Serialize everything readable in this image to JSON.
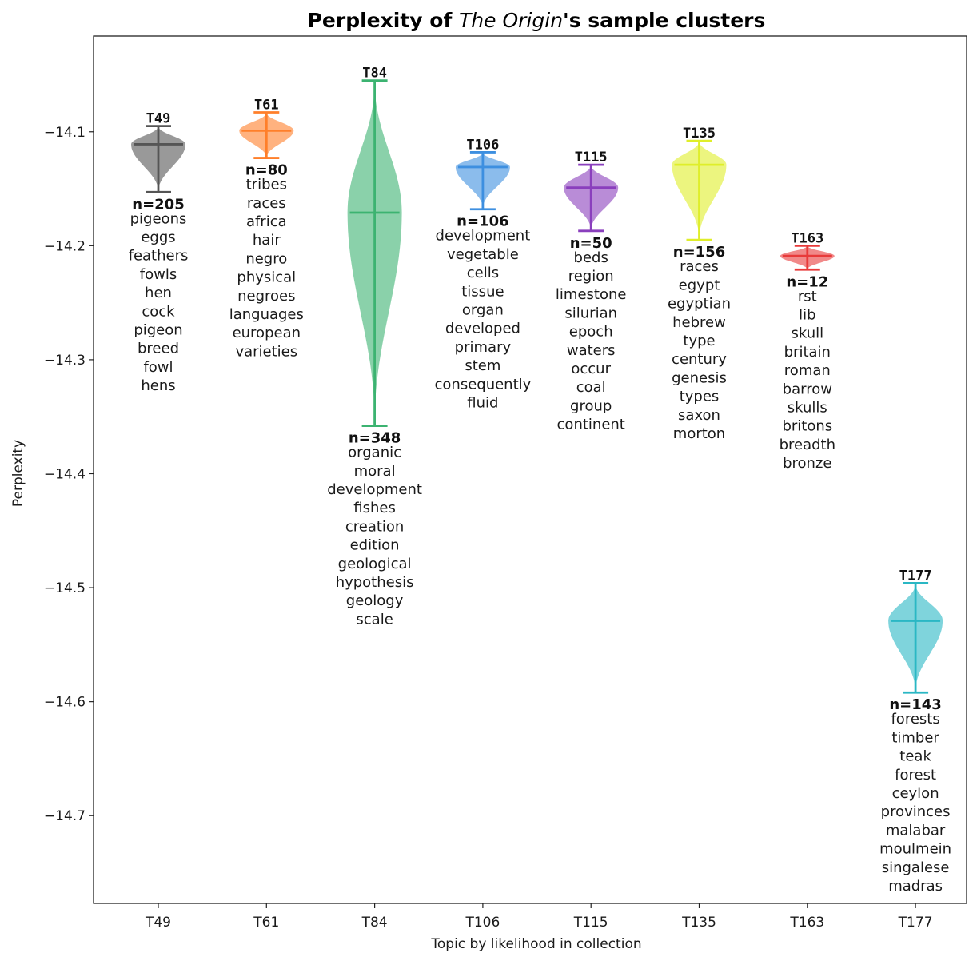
{
  "chart_data": {
    "type": "violin",
    "title_parts": [
      "Perplexity of ",
      "The Origin",
      "'s sample clusters"
    ],
    "xlabel": "Topic by likelihood in collection",
    "ylabel": "Perplexity",
    "ylim": [
      -14.777,
      -14.016
    ],
    "yticks": [
      -14.1,
      -14.2,
      -14.3,
      -14.4,
      -14.5,
      -14.6,
      -14.7
    ],
    "categories": [
      "T49",
      "T61",
      "T84",
      "T106",
      "T115",
      "T135",
      "T163",
      "T177"
    ],
    "series": [
      {
        "topic": "T49",
        "color": "#555555",
        "median": -14.111,
        "min": -14.153,
        "max": -14.095,
        "n": "n=205",
        "words": [
          "pigeons",
          "eggs",
          "feathers",
          "fowls",
          "hen",
          "cock",
          "pigeon",
          "breed",
          "fowl",
          "hens"
        ]
      },
      {
        "topic": "T61",
        "color": "#ff7f2a",
        "median": -14.099,
        "min": -14.123,
        "max": -14.083,
        "n": "n=80",
        "words": [
          "tribes",
          "races",
          "africa",
          "hair",
          "negro",
          "physical",
          "negroes",
          "languages",
          "european",
          "varieties"
        ]
      },
      {
        "topic": "T84",
        "color": "#3cb371",
        "median": -14.171,
        "min": -14.358,
        "max": -14.055,
        "n": "n=348",
        "words": [
          "organic",
          "moral",
          "development",
          "fishes",
          "creation",
          "edition",
          "geological",
          "hypothesis",
          "geology",
          "scale"
        ]
      },
      {
        "topic": "T106",
        "color": "#3d8fe0",
        "median": -14.131,
        "min": -14.168,
        "max": -14.118,
        "n": "n=106",
        "words": [
          "development",
          "vegetable",
          "cells",
          "tissue",
          "organ",
          "developed",
          "primary",
          "stem",
          "consequently",
          "fluid"
        ]
      },
      {
        "topic": "T115",
        "color": "#8a3fbd",
        "median": -14.149,
        "min": -14.187,
        "max": -14.129,
        "n": "n=50",
        "words": [
          "beds",
          "region",
          "limestone",
          "silurian",
          "epoch",
          "waters",
          "occur",
          "coal",
          "group",
          "continent"
        ]
      },
      {
        "topic": "T135",
        "color": "#dfee2a",
        "median": -14.129,
        "min": -14.195,
        "max": -14.108,
        "n": "n=156",
        "words": [
          "races",
          "egypt",
          "egyptian",
          "hebrew",
          "type",
          "century",
          "genesis",
          "types",
          "saxon",
          "morton"
        ]
      },
      {
        "topic": "T163",
        "color": "#e83a3a",
        "median": -14.209,
        "min": -14.221,
        "max": -14.2,
        "n": "n=12",
        "words": [
          "rst",
          "lib",
          "skull",
          "britain",
          "roman",
          "barrow",
          "skulls",
          "britons",
          "breadth",
          "bronze"
        ]
      },
      {
        "topic": "T177",
        "color": "#2ab7c4",
        "median": -14.529,
        "min": -14.592,
        "max": -14.496,
        "n": "n=143",
        "words": [
          "forests",
          "timber",
          "teak",
          "forest",
          "ceylon",
          "provinces",
          "malabar",
          "moulmein",
          "singalese",
          "madras"
        ]
      }
    ]
  }
}
